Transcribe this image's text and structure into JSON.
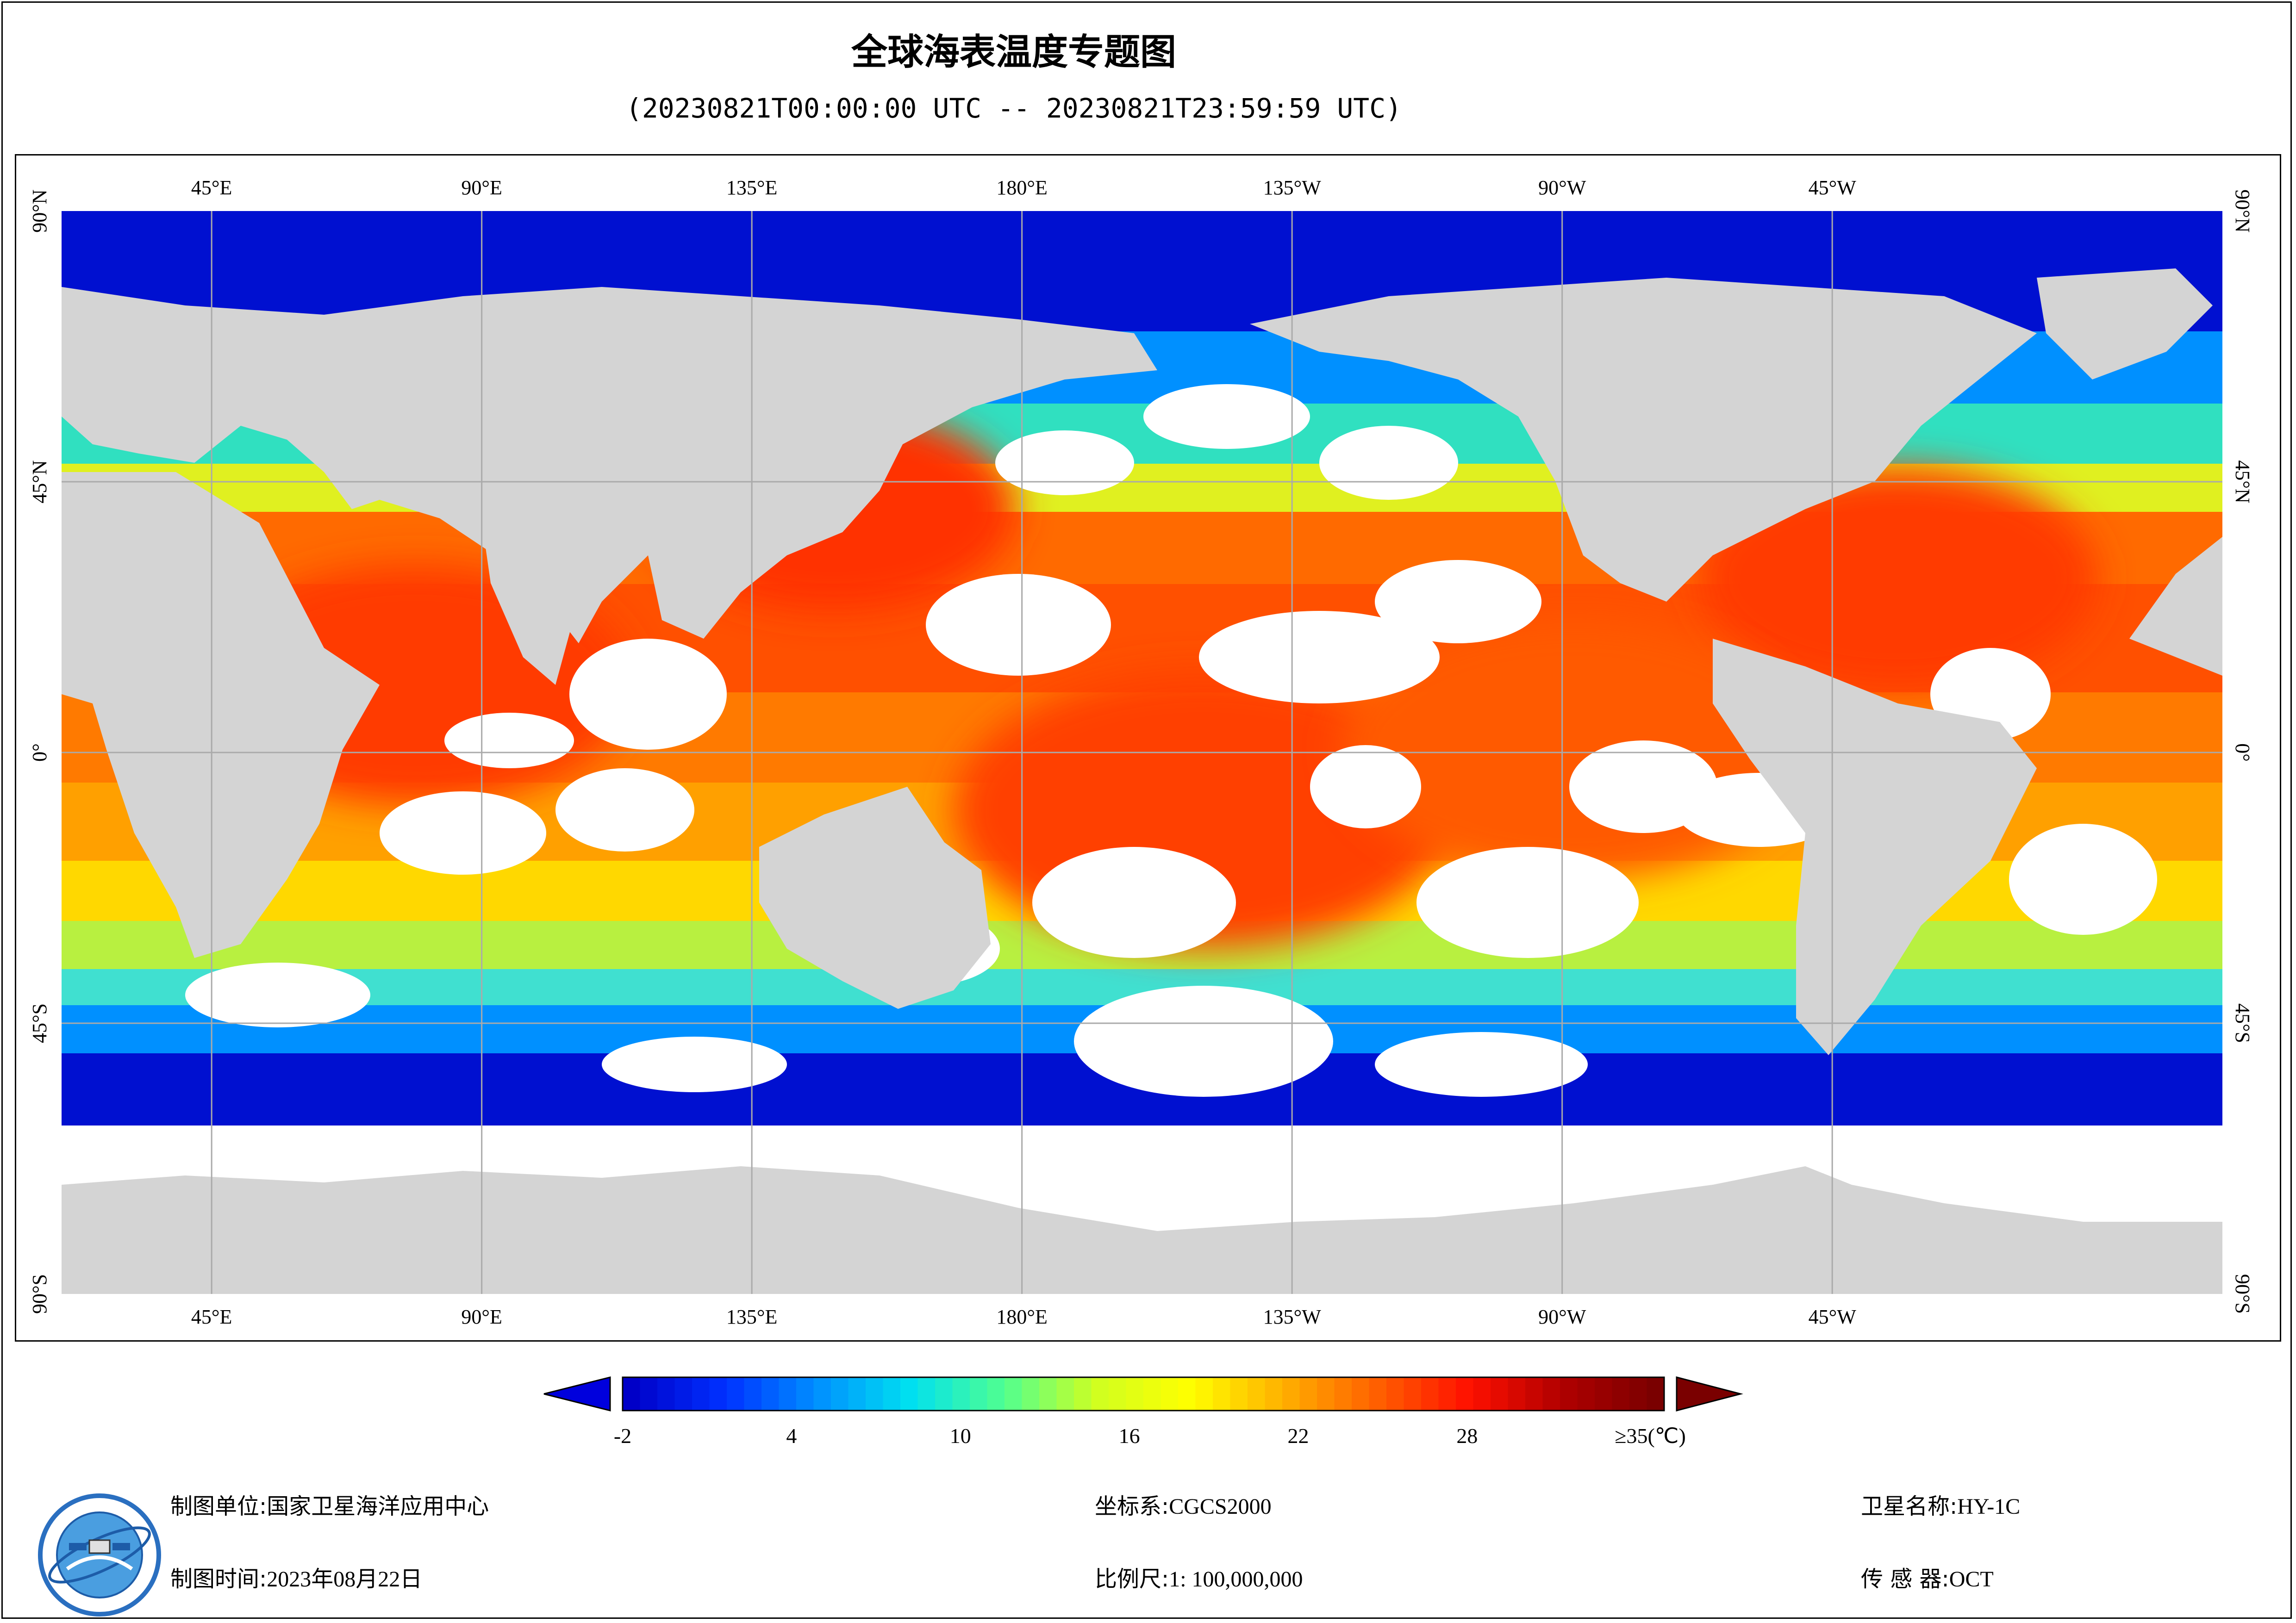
{
  "title": "全球海表温度专题图",
  "subtitle": "(20230821T00:00:00 UTC -- 20230821T23:59:59 UTC)",
  "map": {
    "top_ticks": [
      "45°E",
      "90°E",
      "135°E",
      "180°E",
      "135°W",
      "90°W",
      "45°W"
    ],
    "bottom_ticks": [
      "45°E",
      "90°E",
      "135°E",
      "180°E",
      "135°W",
      "90°W",
      "45°W"
    ],
    "left_ticks": [
      "90°N",
      "45°N",
      "0°",
      "45°S",
      "90°S"
    ],
    "right_ticks": [
      "90°N",
      "45°N",
      "0°",
      "45°S",
      "90°S"
    ],
    "colors": {
      "land": "#d4d4d4",
      "cloud_ice": "#ffffff",
      "grid": "#aaaaaa"
    }
  },
  "legend": {
    "labels": [
      "-2",
      "4",
      "10",
      "16",
      "22",
      "28",
      "≥35(℃)"
    ],
    "min": -2,
    "max": 35,
    "colors": [
      "#0000c8",
      "#0030ff",
      "#0090ff",
      "#00e0f0",
      "#50ff90",
      "#d0ff20",
      "#ffff00",
      "#ffb000",
      "#ff6000",
      "#ff1000",
      "#b00000",
      "#7a0000"
    ],
    "under_color": "#0000dd",
    "over_color": "#7a0000"
  },
  "footer": {
    "producer_label": "制图单位:",
    "producer": "国家卫星海洋应用中心",
    "date_label": "制图时间:",
    "date": "2023年08月22日",
    "crs_label": "坐标系:",
    "crs": "CGCS2000",
    "scale_label": "比例尺:",
    "scale": "1: 100,000,000",
    "satellite_label": "卫星名称:",
    "satellite": "HY-1C",
    "sensor_label": "传 感 器:",
    "sensor": "OCT"
  }
}
